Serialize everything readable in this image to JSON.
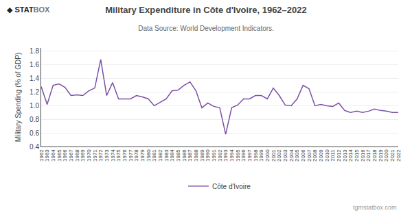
{
  "chart_data": {
    "type": "line",
    "title": "Military Expenditure in Côte d'Ivoire, 1962–2022",
    "subtitle": "Data Source: World Development Indicators.",
    "ylabel": "Military Spending (% of GDP)",
    "annotations": [
      "◆",
      "STAT",
      "BOX",
      "tgmstatbox.com"
    ],
    "x": [
      1962,
      1963,
      1964,
      1965,
      1966,
      1967,
      1968,
      1969,
      1970,
      1971,
      1972,
      1973,
      1974,
      1975,
      1976,
      1977,
      1978,
      1979,
      1980,
      1981,
      1982,
      1983,
      1984,
      1985,
      1986,
      1987,
      1988,
      1989,
      1990,
      1991,
      1992,
      1993,
      1994,
      1995,
      1996,
      1997,
      1998,
      1999,
      2000,
      2001,
      2002,
      2003,
      2004,
      2005,
      2006,
      2007,
      2008,
      2009,
      2010,
      2011,
      2012,
      2013,
      2014,
      2015,
      2016,
      2017,
      2018,
      2019,
      2020,
      2021,
      2022
    ],
    "series": [
      {
        "name": "Côte d'Ivoire",
        "color": "#7b4fa6",
        "values": [
          1.28,
          1.02,
          1.3,
          1.32,
          1.27,
          1.15,
          1.16,
          1.15,
          1.22,
          1.26,
          1.68,
          1.15,
          1.34,
          1.1,
          1.1,
          1.1,
          1.15,
          1.13,
          1.1,
          1.0,
          1.05,
          1.1,
          1.22,
          1.23,
          1.3,
          1.35,
          1.22,
          0.97,
          1.04,
          0.99,
          0.97,
          0.58,
          0.97,
          1.01,
          1.1,
          1.1,
          1.15,
          1.15,
          1.1,
          1.26,
          1.15,
          1.01,
          1.0,
          1.1,
          1.3,
          1.25,
          1.0,
          1.02,
          1.0,
          0.99,
          1.04,
          0.93,
          0.9,
          0.92,
          0.9,
          0.92,
          0.95,
          0.93,
          0.92,
          0.9,
          0.9
        ]
      }
    ],
    "xlim": [
      1962,
      2022
    ],
    "xticks": [
      1962,
      1963,
      1964,
      1965,
      1966,
      1967,
      1968,
      1969,
      1970,
      1971,
      1972,
      1973,
      1974,
      1975,
      1976,
      1977,
      1978,
      1979,
      1980,
      1981,
      1982,
      1983,
      1984,
      1985,
      1986,
      1987,
      1988,
      1989,
      1990,
      1991,
      1992,
      1993,
      1994,
      1995,
      1996,
      1997,
      1998,
      1999,
      2000,
      2001,
      2002,
      2003,
      2004,
      2005,
      2006,
      2007,
      2008,
      2009,
      2010,
      2011,
      2012,
      2013,
      2014,
      2015,
      2016,
      2017,
      2018,
      2019,
      2020,
      2021,
      2022
    ],
    "ylim": [
      0.4,
      1.85
    ],
    "yticks": [
      0.4,
      0.6,
      0.8,
      {
        "value": 1.0,
        "label": "1.0"
      },
      1.2,
      1.4,
      1.6,
      1.8
    ],
    "grid": "y",
    "legend": "bottom"
  }
}
